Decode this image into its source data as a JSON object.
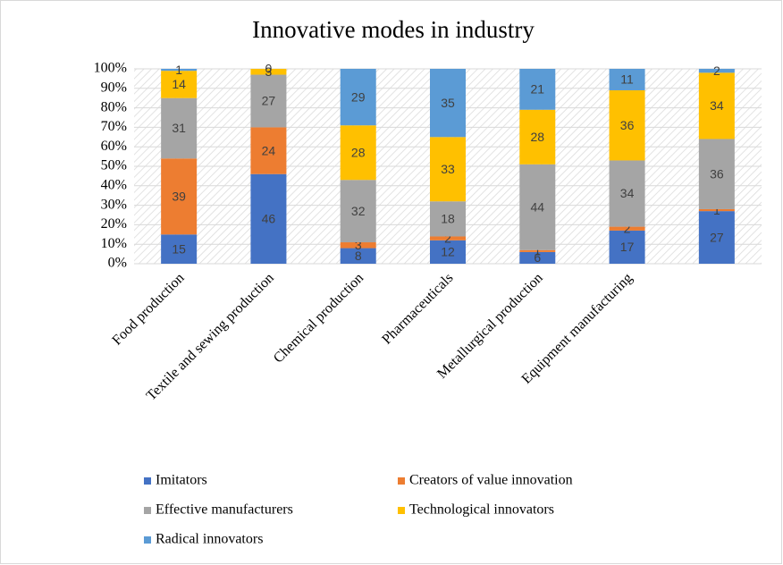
{
  "chart_data": {
    "type": "stacked_bar",
    "title": "Innovative modes in industry",
    "categories": [
      "Food production",
      "Textile and sewing production",
      "Chemical production",
      "Pharmaceuticals",
      "Metallurgical production",
      "Equipment manufacturing",
      null
    ],
    "series": [
      {
        "name": "Imitators",
        "color": "#4472c4",
        "values": [
          15,
          46,
          8,
          12,
          6,
          17,
          27
        ]
      },
      {
        "name": "Creators of value innovation",
        "color": "#ed7d31",
        "values": [
          39,
          24,
          3,
          2,
          1,
          2,
          1
        ]
      },
      {
        "name": "Effective manufacturers",
        "color": "#a5a5a5",
        "values": [
          31,
          27,
          32,
          18,
          44,
          34,
          36
        ]
      },
      {
        "name": "Technological innovators",
        "color": "#ffc000",
        "values": [
          14,
          3,
          28,
          33,
          28,
          36,
          34
        ]
      },
      {
        "name": "Radical innovators",
        "color": "#5b9bd5",
        "values": [
          1,
          0,
          29,
          35,
          21,
          11,
          2
        ]
      }
    ],
    "ylim": [
      0,
      100
    ],
    "yticks": [
      {
        "value": 0,
        "label": "0%"
      },
      {
        "value": 10,
        "label": "10%"
      },
      {
        "value": 20,
        "label": "20%"
      },
      {
        "value": 30,
        "label": "30%"
      },
      {
        "value": 40,
        "label": "40%"
      },
      {
        "value": 50,
        "label": "50%"
      },
      {
        "value": 60,
        "label": "60%"
      },
      {
        "value": 70,
        "label": "70%"
      },
      {
        "value": 80,
        "label": "80%"
      },
      {
        "value": 90,
        "label": "90%"
      },
      {
        "value": 100,
        "label": "100%"
      }
    ],
    "grid": true,
    "legend": "bottom"
  }
}
